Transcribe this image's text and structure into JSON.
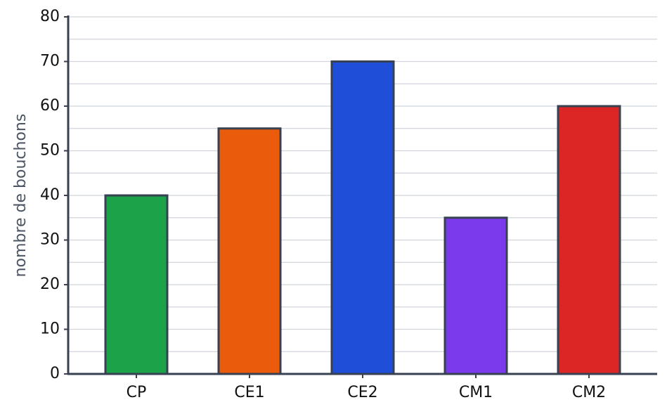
{
  "chart_data": {
    "type": "bar",
    "y_label": "nombre de bouchons",
    "categories": [
      "CP",
      "CE1",
      "CE2",
      "CM1",
      "CM2"
    ],
    "values": [
      40,
      55,
      70,
      35,
      60
    ],
    "colors": [
      "#1ca34a",
      "#ea5b0c",
      "#1f4fd8",
      "#7c3aed",
      "#dc2626"
    ],
    "ylim": [
      0,
      80
    ],
    "yticks": [
      0,
      10,
      20,
      30,
      40,
      50,
      60,
      70,
      80
    ],
    "minor_yticks": [
      5,
      15,
      25,
      35,
      45,
      55,
      65,
      75
    ],
    "grid": true
  }
}
